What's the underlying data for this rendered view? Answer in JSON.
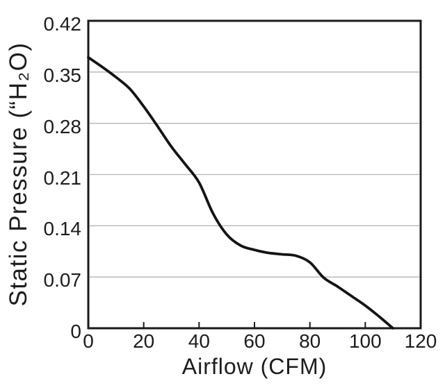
{
  "figure": {
    "background_color": "#ffffff",
    "text_color": "#1c1c1c",
    "axis_color": "#1a1a1a",
    "grid_color": "#b5b5b5",
    "curve_color": "#141414"
  },
  "chart_data": {
    "type": "line",
    "xlabel": "Airflow (CFM)",
    "ylabel": "Static Pressure (“H₂O)",
    "xlim": [
      0,
      120
    ],
    "ylim": [
      0,
      0.42
    ],
    "xticks": [
      0,
      20,
      40,
      60,
      80,
      100,
      120
    ],
    "xtick_labels": [
      "0",
      "20",
      "40",
      "60",
      "80",
      "100",
      "120"
    ],
    "yticks": [
      0,
      0.07,
      0.14,
      0.21,
      0.28,
      0.35,
      0.42
    ],
    "ytick_labels": [
      "0",
      "0.07",
      "0.14",
      "0.21",
      "0.28",
      "0.35",
      "0.42"
    ],
    "grid": "horizontal",
    "legend": "none",
    "series": [
      {
        "name": "fan-performance-curve",
        "x": [
          0,
          5,
          10,
          15,
          20,
          25,
          30,
          35,
          40,
          45,
          50,
          55,
          60,
          65,
          70,
          75,
          80,
          85,
          90,
          95,
          100,
          105,
          110
        ],
        "y": [
          0.37,
          0.357,
          0.343,
          0.327,
          0.303,
          0.276,
          0.248,
          0.224,
          0.199,
          0.157,
          0.128,
          0.113,
          0.107,
          0.103,
          0.101,
          0.099,
          0.09,
          0.069,
          0.057,
          0.044,
          0.031,
          0.016,
          0.0
        ]
      }
    ]
  }
}
